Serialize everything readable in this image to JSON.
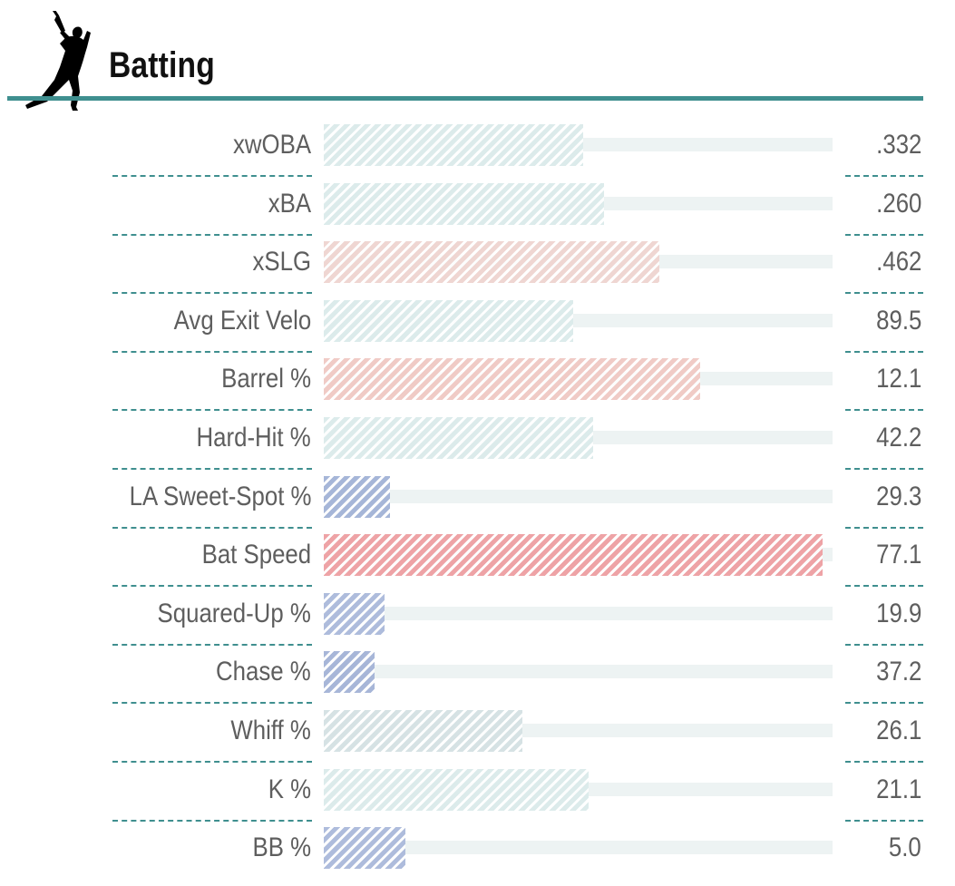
{
  "header": {
    "title": "Batting",
    "icon": "batter-silhouette-icon",
    "accent_color": "#3f8f8f"
  },
  "chart_data": {
    "type": "bar",
    "orientation": "horizontal",
    "title": "Batting",
    "xlabel": "",
    "ylabel": "",
    "xlim": [
      0,
      100
    ],
    "grid": false,
    "legend": "none",
    "series": [
      {
        "values": [
          51,
          55,
          66,
          49,
          74,
          53,
          13,
          98,
          12,
          10,
          39,
          52,
          16
        ]
      }
    ],
    "categories": [
      "xwOBA",
      "xBA",
      "xSLG",
      "Avg Exit Velo",
      "Barrel %",
      "Hard-Hit %",
      "LA Sweet-Spot %",
      "Bat Speed",
      "Squared-Up %",
      "Chase %",
      "Whiff %",
      "K %",
      "BB %"
    ],
    "value_labels": [
      ".332",
      ".260",
      ".462",
      "89.5",
      "12.1",
      "42.2",
      "29.3",
      "77.1",
      "19.9",
      "37.2",
      "26.1",
      "21.1",
      "5.0"
    ],
    "bar_colors": [
      "#dcebeb",
      "#dcebeb",
      "#efd6d2",
      "#dcebeb",
      "#f0cbc6",
      "#dcebeb",
      "#a6b6d8",
      "#eea3a6",
      "#aebcdc",
      "#a7b6d8",
      "#d6e2e4",
      "#dcebeb",
      "#aebcdc"
    ]
  }
}
